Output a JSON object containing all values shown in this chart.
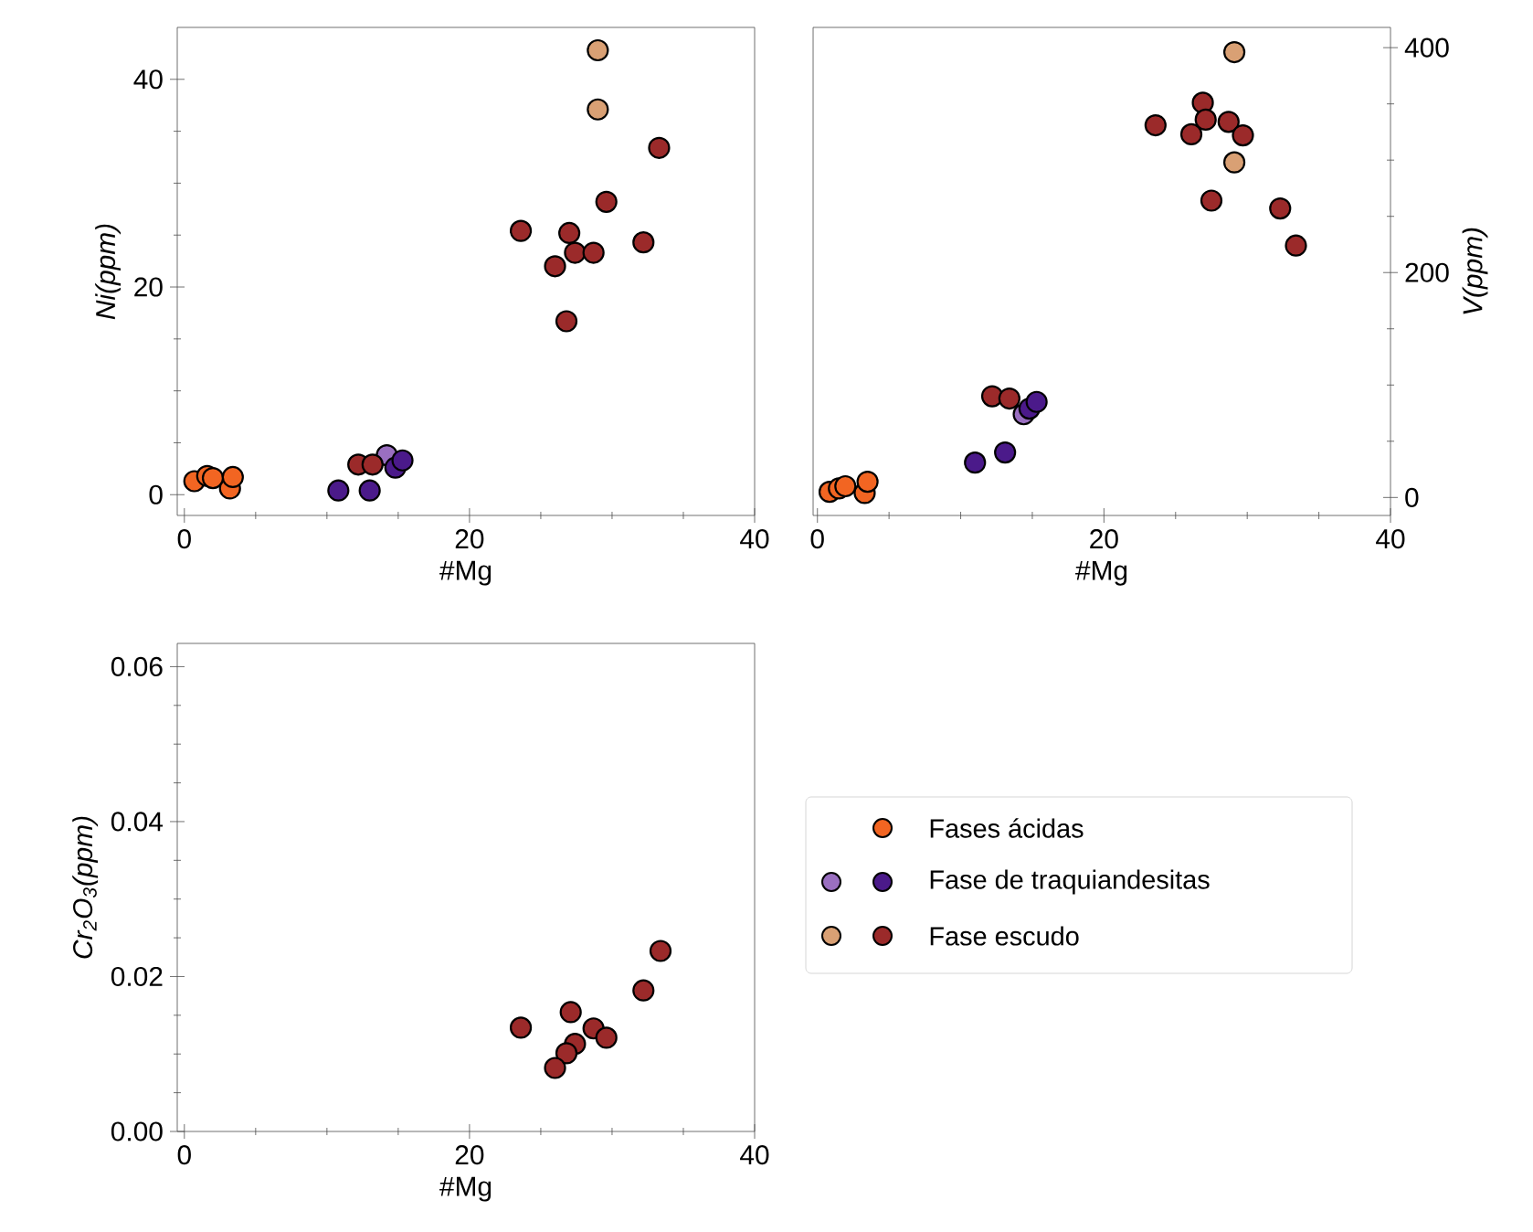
{
  "chart_data": [
    {
      "type": "scatter",
      "xlabel": "#Mg",
      "ylabel": "*Ni(ppm)*",
      "xlim": [
        -0.5,
        40
      ],
      "ylim": [
        -2,
        45
      ],
      "xticks": [
        0,
        20,
        40
      ],
      "yticks": [
        0,
        20,
        40
      ],
      "marker": "circle",
      "grid": false,
      "legend": false,
      "series": [
        {
          "color": "#f26522",
          "x": [
            0.7,
            1.6,
            2.0,
            3.2,
            3.4
          ],
          "values": [
            1.3,
            1.8,
            1.6,
            0.6,
            1.7
          ]
        },
        {
          "color": "#9a6fc0",
          "x": [
            14.2
          ],
          "values": [
            3.8
          ]
        },
        {
          "color": "#4b1a8a",
          "x": [
            10.8,
            13.0,
            14.8,
            15.3
          ],
          "values": [
            0.4,
            0.4,
            2.6,
            3.3
          ]
        },
        {
          "color": "#d9a074",
          "x": [
            29.0,
            29.0
          ],
          "values": [
            42.8,
            37.1
          ]
        },
        {
          "color": "#9b2a2a",
          "x": [
            12.2,
            13.2,
            23.6,
            27.0,
            27.4,
            28.7,
            26.0,
            26.8,
            29.6,
            32.2,
            33.3
          ],
          "values": [
            2.9,
            2.9,
            25.4,
            25.2,
            23.3,
            23.3,
            22.0,
            16.7,
            28.2,
            24.3,
            33.4
          ]
        }
      ]
    },
    {
      "type": "scatter",
      "xlabel": "#Mg",
      "ylabel": "*V(ppm)*",
      "xlim": [
        -0.3,
        40
      ],
      "ylim": [
        -16,
        418
      ],
      "xticks": [
        0,
        20,
        40
      ],
      "yticks": [
        0,
        200,
        400
      ],
      "marker": "circle",
      "grid": false,
      "legend": false,
      "series": [
        {
          "color": "#f26522",
          "x": [
            0.85,
            1.5,
            1.95,
            3.3,
            3.5
          ],
          "values": [
            5,
            8,
            10,
            4,
            14
          ]
        },
        {
          "color": "#9a6fc0",
          "x": [
            14.4
          ],
          "values": [
            74
          ]
        },
        {
          "color": "#4b1a8a",
          "x": [
            11.0,
            13.1,
            14.8,
            15.3
          ],
          "values": [
            31,
            40,
            79,
            85
          ]
        },
        {
          "color": "#d9a074",
          "x": [
            29.1,
            29.1
          ],
          "values": [
            396,
            298
          ]
        },
        {
          "color": "#9b2a2a",
          "x": [
            12.2,
            13.4,
            23.6,
            26.1,
            26.9,
            27.1,
            28.7,
            29.7,
            27.5,
            32.3,
            33.4
          ],
          "values": [
            90,
            88,
            331,
            323,
            351,
            336,
            334,
            322,
            264,
            257,
            224
          ]
        }
      ]
    },
    {
      "type": "scatter",
      "xlabel": "#Mg",
      "ylabel": "*Cr$_{2}$O$_{3}$(ppm)*",
      "xlim": [
        -0.5,
        40
      ],
      "ylim": [
        0,
        0.063
      ],
      "xticks": [
        0,
        20,
        40
      ],
      "yticks": [
        {
          "value": 0,
          "label": "0.00"
        },
        {
          "value": 0.02,
          "label": "0.02"
        },
        {
          "value": 0.04,
          "label": "0.04"
        },
        {
          "value": 0.06,
          "label": "0.06"
        }
      ],
      "marker": "circle",
      "grid": false,
      "legend": "right",
      "series": [
        {
          "name": "Fases ácidas",
          "color": "#f26522"
        },
        {
          "color": "#9a6fc0"
        },
        {
          "name": "Fase de traquiandesitas",
          "color": "#4b1a8a"
        },
        {
          "color": "#d9a074"
        },
        {
          "name": "Fase escudo",
          "color": "#9b2a2a",
          "x": [
            23.6,
            27.1,
            28.7,
            29.6,
            27.4,
            26.8,
            26.0,
            32.2,
            33.4
          ],
          "values": [
            0.0134,
            0.0154,
            0.0133,
            0.0121,
            0.0113,
            0.0101,
            0.0082,
            0.0182,
            0.0233
          ]
        }
      ]
    }
  ]
}
